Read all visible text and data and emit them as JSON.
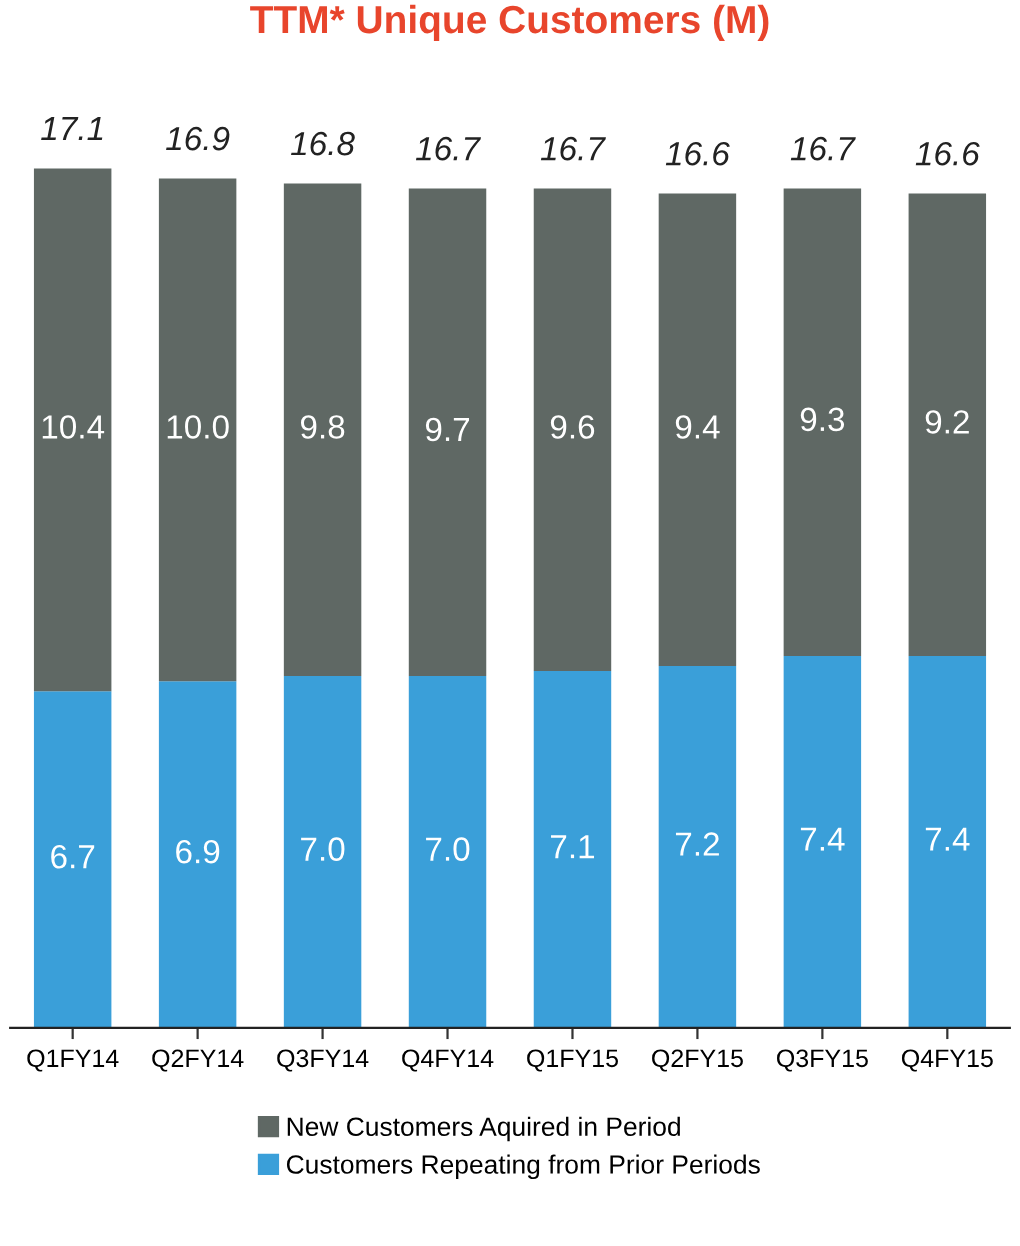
{
  "chart_data": {
    "type": "bar",
    "title": "TTM* Unique Customers (M)",
    "stacked": true,
    "legend": "bottom",
    "grid": false,
    "categories": [
      "Q1FY14",
      "Q2FY14",
      "Q3FY14",
      "Q4FY14",
      "Q1FY15",
      "Q2FY15",
      "Q3FY15",
      "Q4FY15"
    ],
    "series": [
      {
        "name": "Customers Repeating from Prior Periods",
        "color": "#3a9fd9",
        "values": [
          6.7,
          6.9,
          7.0,
          7.0,
          7.1,
          7.2,
          7.4,
          7.4
        ],
        "value_labels": [
          "6.7",
          "6.9",
          "7.0",
          "7.0",
          "7.1",
          "7.2",
          "7.4",
          "7.4"
        ]
      },
      {
        "name": "New Customers Aquired in Period",
        "color": "#5f6864",
        "values": [
          10.4,
          10.0,
          9.8,
          9.7,
          9.6,
          9.4,
          9.3,
          9.2
        ],
        "value_labels": [
          "10.4",
          "10.0",
          "9.8",
          "9.7",
          "9.6",
          "9.4",
          "9.3",
          "9.2"
        ]
      }
    ],
    "totals": [
      "17.1",
      "16.9",
      "16.8",
      "16.7",
      "16.7",
      "16.6",
      "16.7",
      "16.6"
    ]
  }
}
